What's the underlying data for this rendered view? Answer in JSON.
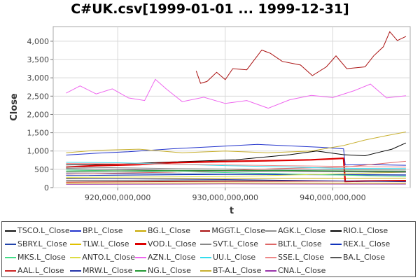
{
  "chart_data": {
    "type": "line",
    "title": "C#UK.csv[1999-01-01 ... 1999-12-31]",
    "xlabel": "t",
    "ylabel": "Close",
    "xlim": [
      914000000000,
      947200000000
    ],
    "ylim": [
      0,
      4400
    ],
    "x_ticks": [
      920000000000,
      930000000000,
      940000000000
    ],
    "x_tick_labels": [
      "920,000,000,000",
      "930,000,000,000",
      "940,000,000,000"
    ],
    "y_ticks": [
      0,
      500,
      1000,
      1500,
      2000,
      2500,
      3000,
      3500,
      4000
    ],
    "y_tick_labels": [
      "0",
      "500",
      "1,000",
      "1,500",
      "2,000",
      "2,500",
      "3,000",
      "3,500",
      "4,000"
    ],
    "grid": true,
    "legend_position": "bottom",
    "series": [
      {
        "name": "TSCO.L_Close",
        "color": "#111111",
        "points": [
          [
            915200000000,
            185
          ],
          [
            930000000000,
            185
          ],
          [
            946800000000,
            180
          ]
        ]
      },
      {
        "name": "BP.L_Close",
        "color": "#2233cc",
        "points": [
          [
            915200000000,
            890
          ],
          [
            918000000000,
            940
          ],
          [
            921000000000,
            980
          ],
          [
            925000000000,
            1060
          ],
          [
            929000000000,
            1120
          ],
          [
            933000000000,
            1180
          ],
          [
            936000000000,
            1140
          ],
          [
            939000000000,
            1100
          ],
          [
            941000000000,
            1060
          ],
          [
            941150000000,
            620
          ],
          [
            943000000000,
            630
          ],
          [
            946800000000,
            610
          ]
        ]
      },
      {
        "name": "BG.L_Close",
        "color": "#c8a800",
        "points": [
          [
            915200000000,
            240
          ],
          [
            930000000000,
            250
          ],
          [
            946800000000,
            260
          ]
        ]
      },
      {
        "name": "MGGT.L_Close",
        "color": "#aa1111",
        "points": [
          [
            927300000000,
            3190
          ],
          [
            927700000000,
            2850
          ],
          [
            928300000000,
            2900
          ],
          [
            929200000000,
            3150
          ],
          [
            930000000000,
            2950
          ],
          [
            930700000000,
            3250
          ],
          [
            932000000000,
            3220
          ],
          [
            933400000000,
            3760
          ],
          [
            934200000000,
            3670
          ],
          [
            935300000000,
            3450
          ],
          [
            937000000000,
            3350
          ],
          [
            938100000000,
            3060
          ],
          [
            939400000000,
            3300
          ],
          [
            940300000000,
            3600
          ],
          [
            941300000000,
            3250
          ],
          [
            943000000000,
            3300
          ],
          [
            943800000000,
            3600
          ],
          [
            944700000000,
            3850
          ],
          [
            945300000000,
            4260
          ],
          [
            946000000000,
            4020
          ],
          [
            946800000000,
            4130
          ]
        ]
      },
      {
        "name": "AGK.L_Close",
        "color": "#909090",
        "points": [
          [
            915200000000,
            420
          ],
          [
            925000000000,
            430
          ],
          [
            935000000000,
            470
          ],
          [
            946800000000,
            430
          ]
        ]
      },
      {
        "name": "RIO.L_Close",
        "color": "#000000",
        "points": [
          [
            915200000000,
            620
          ],
          [
            920000000000,
            640
          ],
          [
            925000000000,
            700
          ],
          [
            931000000000,
            760
          ],
          [
            936000000000,
            900
          ],
          [
            938500000000,
            1000
          ],
          [
            941000000000,
            900
          ],
          [
            943000000000,
            870
          ],
          [
            944500000000,
            980
          ],
          [
            945500000000,
            1050
          ],
          [
            946800000000,
            1220
          ]
        ]
      },
      {
        "name": "SBRY.L_Close",
        "color": "#2244aa",
        "points": [
          [
            915200000000,
            380
          ],
          [
            930000000000,
            370
          ],
          [
            946800000000,
            350
          ]
        ]
      },
      {
        "name": "TLW.L_Close",
        "color": "#e0c000",
        "points": [
          [
            915200000000,
            120
          ],
          [
            930000000000,
            130
          ],
          [
            946800000000,
            120
          ]
        ]
      },
      {
        "name": "VOD.L_Close",
        "color": "#dd0000",
        "points": [
          [
            915200000000,
            560
          ],
          [
            918000000000,
            600
          ],
          [
            922000000000,
            630
          ],
          [
            925000000000,
            680
          ],
          [
            928000000000,
            700
          ],
          [
            931000000000,
            720
          ],
          [
            935000000000,
            740
          ],
          [
            938000000000,
            760
          ],
          [
            941000000000,
            800
          ],
          [
            941150000000,
            170
          ],
          [
            943000000000,
            180
          ],
          [
            946800000000,
            190
          ]
        ]
      },
      {
        "name": "SVT.L_Close",
        "color": "#888888",
        "points": [
          [
            915200000000,
            560
          ],
          [
            925000000000,
            520
          ],
          [
            935000000000,
            500
          ],
          [
            946800000000,
            480
          ]
        ]
      },
      {
        "name": "BLT.L_Close",
        "color": "#dd6666",
        "points": [
          [
            915200000000,
            370
          ],
          [
            925000000000,
            420
          ],
          [
            935000000000,
            520
          ],
          [
            941000000000,
            560
          ],
          [
            946800000000,
            720
          ]
        ]
      },
      {
        "name": "REX.L_Close",
        "color": "#1133bb",
        "points": [
          [
            915200000000,
            330
          ],
          [
            930000000000,
            360
          ],
          [
            946800000000,
            340
          ]
        ]
      },
      {
        "name": "MKS.L_Close",
        "color": "#44dd88",
        "points": [
          [
            915200000000,
            480
          ],
          [
            925000000000,
            440
          ],
          [
            935000000000,
            380
          ],
          [
            946800000000,
            300
          ]
        ]
      },
      {
        "name": "ANTO.L_Close",
        "color": "#dddd44",
        "points": [
          [
            915200000000,
            280
          ],
          [
            930000000000,
            300
          ],
          [
            946800000000,
            420
          ]
        ]
      },
      {
        "name": "AZN.L_Close",
        "color": "#ee66ee",
        "points": [
          [
            915200000000,
            2580
          ],
          [
            916500000000,
            2780
          ],
          [
            918000000000,
            2560
          ],
          [
            919500000000,
            2700
          ],
          [
            921000000000,
            2450
          ],
          [
            922500000000,
            2380
          ],
          [
            923500000000,
            2960
          ],
          [
            924500000000,
            2700
          ],
          [
            926000000000,
            2350
          ],
          [
            928000000000,
            2470
          ],
          [
            930000000000,
            2300
          ],
          [
            932000000000,
            2380
          ],
          [
            934000000000,
            2170
          ],
          [
            936000000000,
            2400
          ],
          [
            938000000000,
            2520
          ],
          [
            940000000000,
            2460
          ],
          [
            942000000000,
            2650
          ],
          [
            943500000000,
            2830
          ],
          [
            945000000000,
            2450
          ],
          [
            946800000000,
            2510
          ]
        ]
      },
      {
        "name": "UU.L_Close",
        "color": "#33ddee",
        "points": [
          [
            915200000000,
            690
          ],
          [
            920000000000,
            680
          ],
          [
            925000000000,
            640
          ],
          [
            930000000000,
            600
          ],
          [
            935000000000,
            570
          ],
          [
            940000000000,
            530
          ],
          [
            946800000000,
            520
          ]
        ]
      },
      {
        "name": "SSE.L_Close",
        "color": "#ee8888",
        "points": [
          [
            915200000000,
            660
          ],
          [
            925000000000,
            640
          ],
          [
            935000000000,
            600
          ],
          [
            946800000000,
            560
          ]
        ]
      },
      {
        "name": "BA.L_Close",
        "color": "#555555",
        "points": [
          [
            915200000000,
            520
          ],
          [
            925000000000,
            470
          ],
          [
            935000000000,
            440
          ],
          [
            946800000000,
            420
          ]
        ]
      },
      {
        "name": "AAL.L_Close",
        "color": "#cc2222",
        "points": [
          [
            915200000000,
            150
          ],
          [
            930000000000,
            170
          ],
          [
            946800000000,
            180
          ]
        ]
      },
      {
        "name": "MRW.L_Close",
        "color": "#2233aa",
        "points": [
          [
            915200000000,
            250
          ],
          [
            930000000000,
            220
          ],
          [
            946800000000,
            160
          ]
        ]
      },
      {
        "name": "NG.L_Close",
        "color": "#229933",
        "points": [
          [
            915200000000,
            450
          ],
          [
            925000000000,
            470
          ],
          [
            935000000000,
            470
          ],
          [
            946800000000,
            450
          ]
        ]
      },
      {
        "name": "BT-A.L_Close",
        "color": "#c8b030",
        "points": [
          [
            915200000000,
            950
          ],
          [
            918000000000,
            1020
          ],
          [
            922000000000,
            1050
          ],
          [
            926000000000,
            950
          ],
          [
            930000000000,
            1000
          ],
          [
            934000000000,
            950
          ],
          [
            938000000000,
            1000
          ],
          [
            941000000000,
            1150
          ],
          [
            943000000000,
            1300
          ],
          [
            945000000000,
            1420
          ],
          [
            946800000000,
            1520
          ]
        ]
      },
      {
        "name": "CNA.L_Close",
        "color": "#9933aa",
        "points": [
          [
            915200000000,
            90
          ],
          [
            930000000000,
            100
          ],
          [
            946800000000,
            95
          ]
        ]
      }
    ]
  }
}
